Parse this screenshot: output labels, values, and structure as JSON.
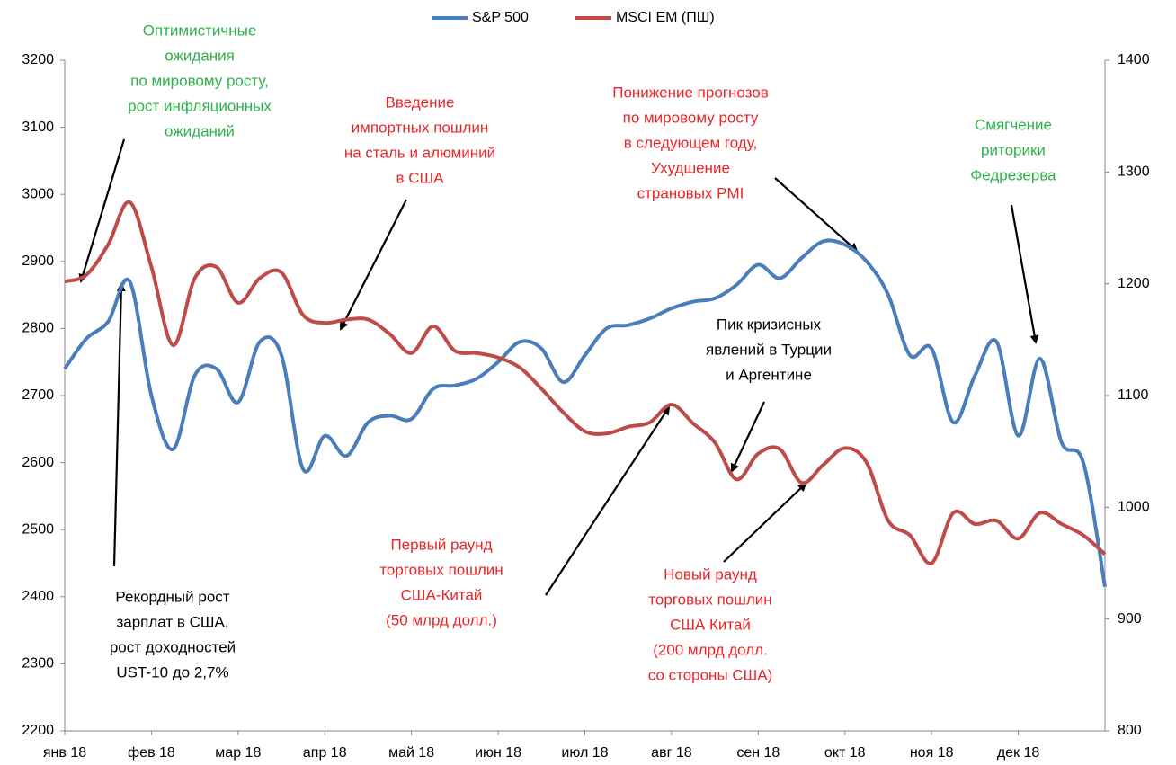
{
  "chart_data": {
    "type": "line",
    "categories": [
      "янв 18",
      null,
      null,
      null,
      "фев 18",
      null,
      null,
      null,
      "мар 18",
      null,
      null,
      null,
      "апр 18",
      null,
      null,
      null,
      "май 18",
      null,
      null,
      null,
      "июн 18",
      null,
      null,
      null,
      "июл 18",
      null,
      null,
      null,
      "авг 18",
      null,
      null,
      null,
      "сен 18",
      null,
      null,
      null,
      "окт 18",
      null,
      null,
      null,
      "ноя 18",
      null,
      null,
      null,
      "дек 18",
      null,
      null,
      null,
      null
    ],
    "series": [
      {
        "name": "S&P 500",
        "color": "#4a7ebb",
        "axis": "y",
        "values": [
          2740,
          2785,
          2810,
          2870,
          2700,
          2620,
          2730,
          2740,
          2690,
          2780,
          2760,
          2590,
          2640,
          2610,
          2660,
          2670,
          2665,
          2710,
          2715,
          2725,
          2750,
          2780,
          2770,
          2720,
          2760,
          2800,
          2805,
          2815,
          2830,
          2840,
          2845,
          2865,
          2895,
          2875,
          2905,
          2930,
          2925,
          2900,
          2850,
          2760,
          2770,
          2660,
          2730,
          2780,
          2640,
          2755,
          2630,
          2600,
          2415
        ]
      },
      {
        "name": "MSCI EM (ПШ)",
        "color": "#be4b48",
        "axis": "y2",
        "values": [
          1202,
          1208,
          1235,
          1273,
          1215,
          1145,
          1205,
          1215,
          1183,
          1205,
          1210,
          1172,
          1165,
          1168,
          1168,
          1155,
          1138,
          1162,
          1140,
          1138,
          1134,
          1125,
          1106,
          1085,
          1068,
          1066,
          1072,
          1076,
          1092,
          1075,
          1058,
          1025,
          1048,
          1052,
          1022,
          1038,
          1053,
          1040,
          988,
          975,
          950,
          995,
          985,
          988,
          972,
          995,
          985,
          975,
          958
        ]
      }
    ],
    "ylim": [
      2200,
      3200
    ],
    "yticks": [
      2200,
      2300,
      2400,
      2500,
      2600,
      2700,
      2800,
      2900,
      3000,
      3100,
      3200
    ],
    "y2lim": [
      800,
      1400
    ],
    "y2ticks": [
      800,
      900,
      1000,
      1100,
      1200,
      1300,
      1400
    ],
    "grid": false,
    "legend": "top",
    "annotations": [
      {
        "color": "#2eb14a",
        "lines": [
          "Оптимистичные",
          "ожидания",
          "по мировому росту,",
          "рост инфляционных",
          "ожиданий"
        ]
      },
      {
        "color": "#e8262a",
        "lines": [
          "Введение",
          "импортных пошлин",
          "на сталь и алюминий",
          "в США"
        ]
      },
      {
        "color": "#e8262a",
        "lines": [
          "Понижение прогнозов",
          "по мировому росту",
          "в следующем году,",
          "Ухудшение",
          "страновых PMI"
        ]
      },
      {
        "color": "#2eb14a",
        "lines": [
          "Смягчение",
          "риторики",
          "Федрезерва"
        ]
      },
      {
        "color": "#000000",
        "lines": [
          "Пик кризисных",
          "явлений в Турции",
          "и Аргентине"
        ]
      },
      {
        "color": "#000000",
        "lines": [
          "Рекордный рост",
          "зарплат в США,",
          "рост доходностей",
          "UST-10 до 2,7%"
        ]
      },
      {
        "color": "#e8262a",
        "lines": [
          "Первый раунд",
          "торговых пошлин",
          "США-Китай",
          "(50 млрд долл.)"
        ]
      },
      {
        "color": "#e8262a",
        "lines": [
          "Новый раунд",
          "торговых пошлин",
          "США Китай",
          "(200 млрд долл.",
          "со стороны США)"
        ]
      }
    ]
  }
}
